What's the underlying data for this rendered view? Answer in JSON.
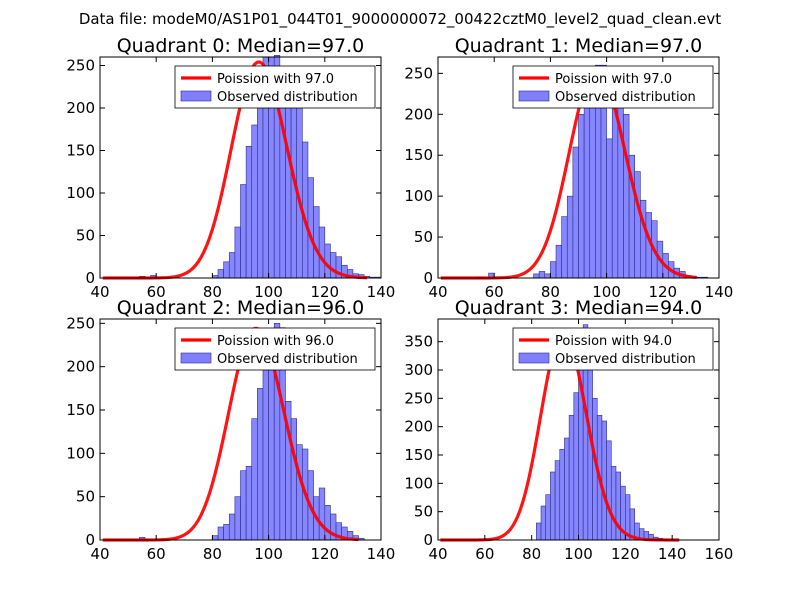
{
  "figure": {
    "suptitle": "Data file: modeM0/AS1P01_044T01_9000000072_00422cztM0_level2_quad_clean.evt",
    "colors": {
      "bar_fill": "#7f7fff",
      "bar_edge": "#2d2d8f",
      "curve": "#ff0000",
      "axes": "#000000"
    }
  },
  "chart_data": [
    {
      "type": "bar",
      "title": "Quadrant 0: Median=97.0",
      "xlim": [
        40,
        140
      ],
      "ylim": [
        0,
        260
      ],
      "xticks": [
        40,
        60,
        80,
        100,
        120,
        140
      ],
      "yticks": [
        0,
        50,
        100,
        150,
        200,
        250
      ],
      "legend": {
        "location": "top-right",
        "curve_label": "Poission with 97.0",
        "hist_label": "Observed distribution"
      },
      "histogram": {
        "bin_start": 42,
        "bin_width": 2,
        "values": [
          0,
          0,
          0,
          0,
          0,
          0,
          2,
          0,
          3,
          0,
          0,
          0,
          0,
          0,
          0,
          0,
          0,
          0,
          0,
          3,
          10,
          19,
          30,
          60,
          110,
          155,
          180,
          240,
          260,
          260,
          262,
          240,
          230,
          230,
          210,
          160,
          118,
          84,
          60,
          40,
          30,
          25,
          15,
          10,
          5,
          4,
          2,
          1,
          1
        ]
      },
      "poisson": {
        "mean": 97.0,
        "x_range": [
          41,
          135
        ],
        "peak": 254
      }
    },
    {
      "type": "bar",
      "title": "Quadrant 1: Median=97.0",
      "xlim": [
        40,
        140
      ],
      "ylim": [
        0,
        270
      ],
      "xticks": [
        40,
        60,
        80,
        100,
        120,
        140
      ],
      "yticks": [
        0,
        50,
        100,
        150,
        200,
        250
      ],
      "legend": {
        "location": "top-right",
        "curve_label": "Poission with 97.0",
        "hist_label": "Observed distribution"
      },
      "histogram": {
        "bin_start": 42,
        "bin_width": 2,
        "values": [
          0,
          0,
          0,
          0,
          0,
          0,
          1,
          0,
          6,
          0,
          0,
          0,
          0,
          0,
          0,
          0,
          5,
          8,
          5,
          20,
          40,
          75,
          100,
          160,
          200,
          230,
          245,
          260,
          260,
          170,
          255,
          255,
          200,
          150,
          130,
          95,
          80,
          70,
          45,
          30,
          20,
          12,
          8,
          3,
          2,
          1,
          1,
          0,
          0
        ]
      },
      "poisson": {
        "mean": 97.0,
        "x_range": [
          41,
          132
        ],
        "peak": 256
      }
    },
    {
      "type": "bar",
      "title": "Quadrant 2: Median=96.0",
      "xlim": [
        40,
        140
      ],
      "ylim": [
        0,
        255
      ],
      "xticks": [
        40,
        60,
        80,
        100,
        120,
        140
      ],
      "yticks": [
        0,
        50,
        100,
        150,
        200,
        250
      ],
      "legend": {
        "location": "top-right",
        "curve_label": "Poission with 96.0",
        "hist_label": "Observed distribution"
      },
      "histogram": {
        "bin_start": 42,
        "bin_width": 2,
        "values": [
          0,
          0,
          0,
          0,
          0,
          0,
          3,
          0,
          0,
          0,
          0,
          0,
          0,
          0,
          0,
          0,
          0,
          0,
          0,
          5,
          15,
          18,
          30,
          50,
          80,
          85,
          140,
          175,
          200,
          230,
          250,
          245,
          160,
          140,
          110,
          105,
          80,
          50,
          60,
          40,
          30,
          20,
          15,
          10,
          5,
          2,
          0,
          0,
          0
        ]
      },
      "poisson": {
        "mean": 96.0,
        "x_range": [
          41,
          132
        ],
        "peak": 244
      }
    },
    {
      "type": "bar",
      "title": "Quadrant 3: Median=94.0",
      "xlim": [
        40,
        160
      ],
      "ylim": [
        0,
        390
      ],
      "xticks": [
        40,
        60,
        80,
        100,
        120,
        140,
        160
      ],
      "yticks": [
        0,
        50,
        100,
        150,
        200,
        250,
        300,
        350
      ],
      "legend": {
        "location": "top-right",
        "curve_label": "Poission with 94.0",
        "hist_label": "Observed distribution"
      },
      "histogram": {
        "bin_start": 62,
        "bin_width": 2,
        "values": [
          0,
          0,
          0,
          0,
          0,
          0,
          0,
          0,
          0,
          0,
          30,
          60,
          80,
          120,
          140,
          160,
          180,
          220,
          260,
          320,
          380,
          350,
          250,
          220,
          210,
          175,
          130,
          120,
          95,
          80,
          55,
          30,
          20,
          15,
          10,
          5,
          3,
          2,
          0,
          0
        ]
      },
      "poisson": {
        "mean": 94.0,
        "x_range": [
          41,
          143
        ],
        "peak": 366
      }
    }
  ]
}
